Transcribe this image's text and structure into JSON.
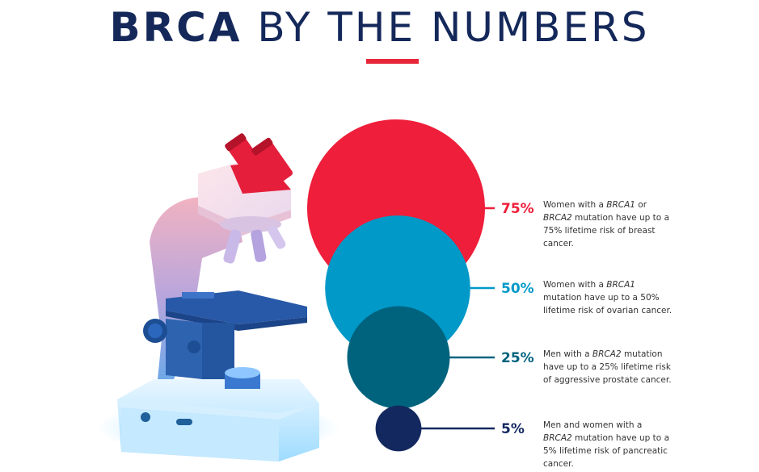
{
  "header": {
    "title_bold": "BRCA",
    "title_rest": "BY THE NUMBERS",
    "title_color": "#14285a",
    "accent_color": "#e8263a"
  },
  "illustration": {
    "icon": "microscope-icon"
  },
  "chart_data": {
    "type": "bubble",
    "title": "BRCA BY THE NUMBERS",
    "unit": "%",
    "series": [
      {
        "value": 75,
        "label": "75%",
        "color": "#ef1e3a",
        "description": [
          "Women with a ",
          {
            "i": "BRCA1"
          },
          " or ",
          {
            "i": "BRCA2"
          },
          " mutation have up to a 75% lifetime risk of breast cancer."
        ]
      },
      {
        "value": 50,
        "label": "50%",
        "color": "#0099c8",
        "description": [
          "Women with a ",
          {
            "i": "BRCA1"
          },
          " mutation have up to a 50% lifetime risk of ovarian cancer."
        ]
      },
      {
        "value": 25,
        "label": "25%",
        "color": "#00637e",
        "description": [
          "Men with a ",
          {
            "i": "BRCA2"
          },
          " mutation have up to a 25% lifetime risk of aggressive prostate cancer."
        ]
      },
      {
        "value": 5,
        "label": "5%",
        "color": "#13285f",
        "description": [
          "Men and women with a ",
          {
            "i": "BRCA2"
          },
          " mutation have up to a 5% lifetime risk of pancreatic cancer."
        ]
      }
    ]
  }
}
